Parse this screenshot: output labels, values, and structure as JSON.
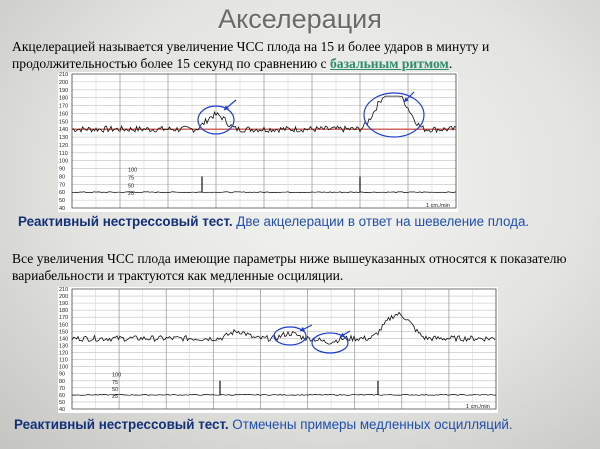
{
  "title": "Акселерация",
  "definition": {
    "text": "Акцелерацией называется увеличение ЧСС плода на 15 и более ударов в минуту и продолжительностью более 15 секунд по сравнению с ",
    "link": "базальным ритмом",
    "end": "."
  },
  "chart1": {
    "y_ticks": [
      "210",
      "200",
      "190",
      "180",
      "170",
      "160",
      "150",
      "140",
      "130",
      "120",
      "110",
      "100",
      "90",
      "80",
      "70",
      "60",
      "50",
      "40"
    ],
    "uc_ticks": [
      "100",
      "75",
      "50",
      "25"
    ],
    "time_label": "1 cm./min"
  },
  "caption1": {
    "bold": "Реактивный нестрессовый тест.",
    "text": " Две акцелерации в ответ на шевеление плода."
  },
  "paragraph": "Все увеличения ЧСС плода имеющие параметры ниже вышеуказанных относятся к показателю вариабельности и трактуются как медленные осциляции.",
  "chart2": {
    "y_ticks": [
      "210",
      "200",
      "190",
      "180",
      "170",
      "160",
      "150",
      "140",
      "130",
      "120",
      "110",
      "100",
      "90",
      "80",
      "70",
      "60",
      "50",
      "40"
    ],
    "uc_ticks": [
      "100",
      "75",
      "50",
      "25"
    ],
    "time_label": "1 cm./min"
  },
  "caption2": {
    "bold": "Реактивный нестрессовый тест.",
    "text": " Отмечены примеры медленных осцилляций."
  },
  "colors": {
    "baseline": "#c0392b",
    "marker": "#1f3fd0",
    "caption": "#1f4fb0"
  }
}
